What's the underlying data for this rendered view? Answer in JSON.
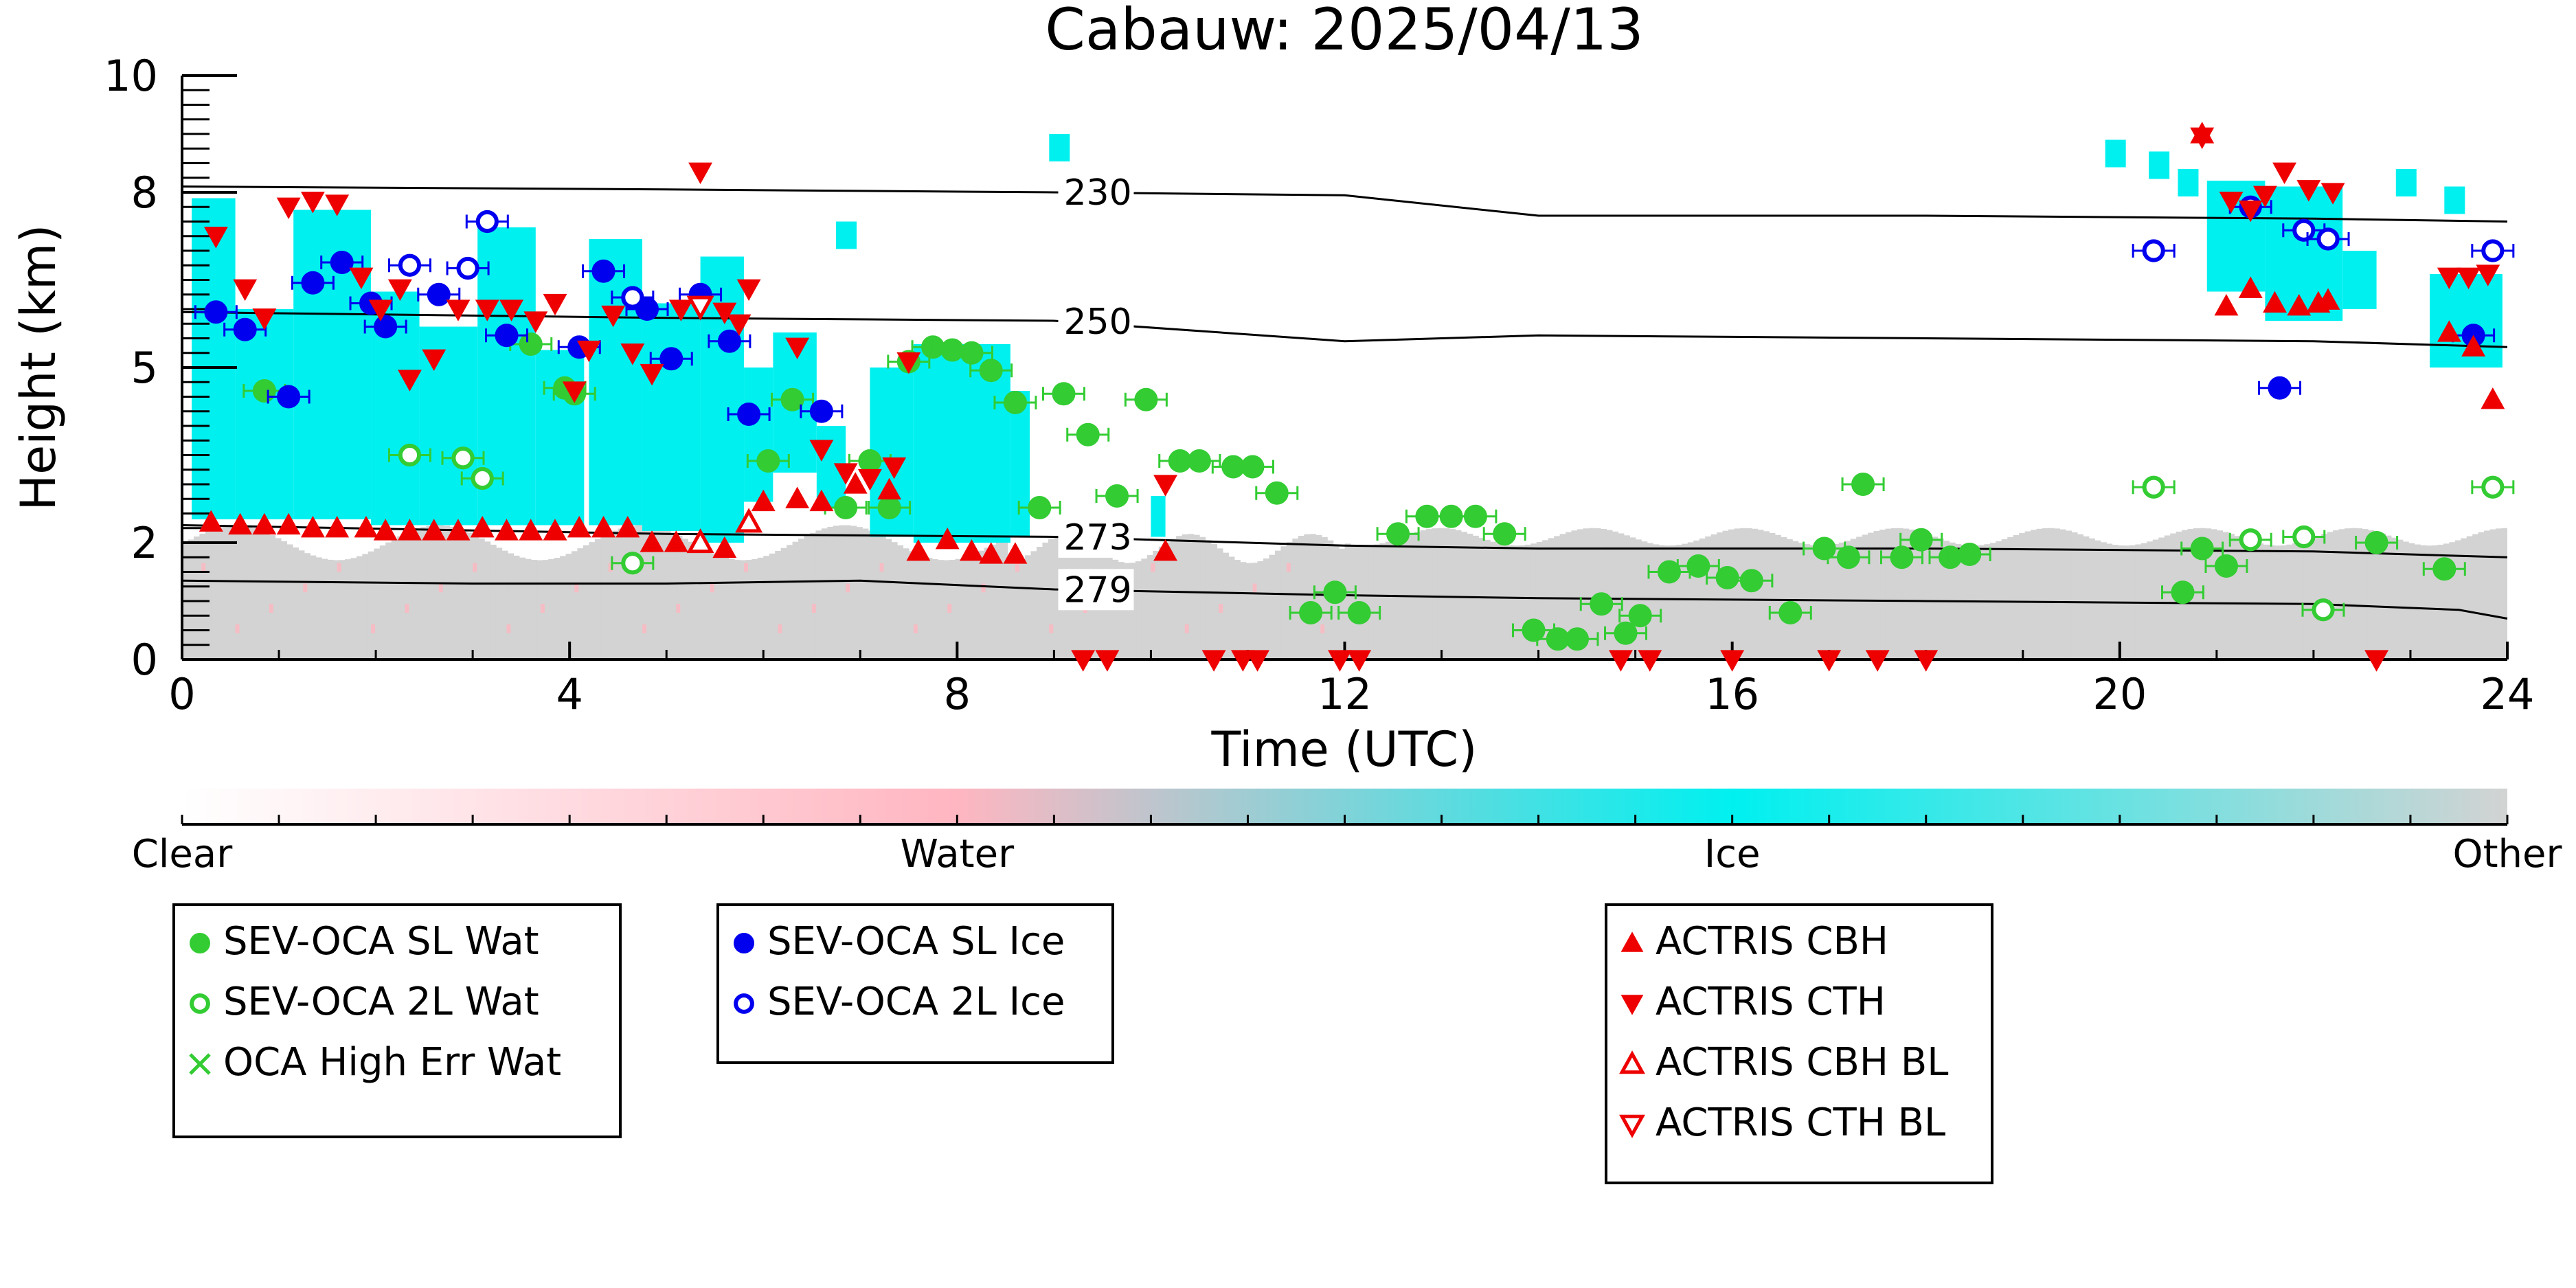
{
  "chart_data": {
    "type": "scatter",
    "title": "Cabauw: 2025/04/13",
    "xlabel": "Time (UTC)",
    "ylabel": "Height (km)",
    "xlim": [
      0,
      24
    ],
    "ylim": [
      0,
      10
    ],
    "x_ticks": [
      "0",
      "4",
      "8",
      "12",
      "16",
      "20",
      "24"
    ],
    "y_ticks": [
      "0",
      "2",
      "5",
      "8",
      "10"
    ],
    "grid": false,
    "colorbar": {
      "labels": [
        "Clear",
        "Water",
        "Ice",
        "Other"
      ],
      "colors": [
        "#ffffff",
        "#ffb6c1",
        "#00f0f0",
        "#d3d3d3"
      ]
    },
    "isotherms": [
      {
        "label": "230",
        "points": [
          [
            0,
            8.1
          ],
          [
            5,
            8.05
          ],
          [
            9,
            8.0
          ],
          [
            12,
            7.95
          ],
          [
            14,
            7.6
          ],
          [
            18,
            7.6
          ],
          [
            22,
            7.55
          ],
          [
            24,
            7.5
          ]
        ]
      },
      {
        "label": "250",
        "points": [
          [
            0,
            5.95
          ],
          [
            5,
            5.85
          ],
          [
            9,
            5.8
          ],
          [
            12,
            5.45
          ],
          [
            14,
            5.55
          ],
          [
            18,
            5.5
          ],
          [
            22,
            5.45
          ],
          [
            24,
            5.35
          ]
        ]
      },
      {
        "label": "273",
        "points": [
          [
            0,
            2.3
          ],
          [
            5,
            2.15
          ],
          [
            9,
            2.1
          ],
          [
            12,
            1.95
          ],
          [
            14,
            1.9
          ],
          [
            18,
            1.9
          ],
          [
            22,
            1.85
          ],
          [
            24,
            1.75
          ]
        ]
      },
      {
        "label": "279",
        "points": [
          [
            0,
            1.35
          ],
          [
            3,
            1.3
          ],
          [
            5,
            1.3
          ],
          [
            7,
            1.35
          ],
          [
            9,
            1.2
          ],
          [
            12,
            1.1
          ],
          [
            14,
            1.05
          ],
          [
            18,
            1.0
          ],
          [
            22,
            0.95
          ],
          [
            23.5,
            0.85
          ],
          [
            24,
            0.7
          ]
        ]
      }
    ],
    "series": [
      {
        "name": "SEV-OCA SL Wat",
        "marker": "filled-circle",
        "color": "#33cc33",
        "points": [
          [
            0.85,
            4.6
          ],
          [
            3.6,
            5.4
          ],
          [
            3.95,
            4.65
          ],
          [
            4.05,
            4.55
          ],
          [
            6.05,
            3.4
          ],
          [
            6.3,
            4.45
          ],
          [
            6.85,
            2.6
          ],
          [
            7.1,
            3.4
          ],
          [
            7.3,
            2.6
          ],
          [
            7.5,
            5.1
          ],
          [
            7.75,
            5.35
          ],
          [
            7.95,
            5.3
          ],
          [
            8.15,
            5.25
          ],
          [
            8.35,
            4.95
          ],
          [
            8.6,
            4.4
          ],
          [
            8.85,
            2.6
          ],
          [
            9.1,
            4.55
          ],
          [
            9.35,
            3.85
          ],
          [
            9.65,
            2.8
          ],
          [
            9.95,
            4.45
          ],
          [
            10.3,
            3.4
          ],
          [
            10.5,
            3.4
          ],
          [
            10.85,
            3.3
          ],
          [
            11.05,
            3.3
          ],
          [
            11.3,
            2.85
          ],
          [
            11.65,
            0.8
          ],
          [
            11.9,
            1.15
          ],
          [
            12.15,
            0.8
          ],
          [
            12.55,
            2.15
          ],
          [
            12.85,
            2.45
          ],
          [
            13.1,
            2.45
          ],
          [
            13.35,
            2.45
          ],
          [
            13.65,
            2.15
          ],
          [
            13.95,
            0.5
          ],
          [
            14.2,
            0.35
          ],
          [
            14.4,
            0.35
          ],
          [
            14.65,
            0.95
          ],
          [
            14.9,
            0.45
          ],
          [
            15.05,
            0.75
          ],
          [
            15.35,
            1.5
          ],
          [
            15.65,
            1.6
          ],
          [
            15.95,
            1.4
          ],
          [
            16.2,
            1.35
          ],
          [
            16.6,
            0.8
          ],
          [
            16.95,
            1.9
          ],
          [
            17.2,
            1.75
          ],
          [
            17.35,
            3.0
          ],
          [
            17.75,
            1.75
          ],
          [
            17.95,
            2.05
          ],
          [
            18.25,
            1.75
          ],
          [
            18.45,
            1.8
          ],
          [
            20.65,
            1.15
          ],
          [
            20.85,
            1.9
          ],
          [
            21.1,
            1.6
          ],
          [
            22.65,
            2.0
          ],
          [
            23.35,
            1.55
          ]
        ]
      },
      {
        "name": "SEV-OCA 2L Wat",
        "marker": "open-circle",
        "color": "#33cc33",
        "points": [
          [
            2.35,
            3.5
          ],
          [
            2.9,
            3.45
          ],
          [
            3.1,
            3.1
          ],
          [
            4.65,
            1.65
          ],
          [
            20.35,
            2.95
          ],
          [
            21.35,
            2.05
          ],
          [
            21.9,
            2.1
          ],
          [
            22.1,
            0.85
          ],
          [
            23.85,
            2.95
          ]
        ]
      },
      {
        "name": "OCA High Err Wat",
        "marker": "x",
        "color": "#33cc33",
        "points": []
      },
      {
        "name": "SEV-OCA SL Ice",
        "marker": "filled-circle",
        "color": "#0000ee",
        "points": [
          [
            0.35,
            5.95
          ],
          [
            0.65,
            5.65
          ],
          [
            1.1,
            4.5
          ],
          [
            1.35,
            6.45
          ],
          [
            1.65,
            6.8
          ],
          [
            1.95,
            6.1
          ],
          [
            2.1,
            5.7
          ],
          [
            2.65,
            6.25
          ],
          [
            3.35,
            5.55
          ],
          [
            4.1,
            5.35
          ],
          [
            4.35,
            6.65
          ],
          [
            4.8,
            6.0
          ],
          [
            5.05,
            5.15
          ],
          [
            5.35,
            6.25
          ],
          [
            5.65,
            5.45
          ],
          [
            5.85,
            4.2
          ],
          [
            6.6,
            4.25
          ],
          [
            21.65,
            4.65
          ],
          [
            23.65,
            5.55
          ]
        ]
      },
      {
        "name": "SEV-OCA 2L Ice",
        "marker": "open-circle",
        "color": "#0000ee",
        "points": [
          [
            2.35,
            6.75
          ],
          [
            2.95,
            6.7
          ],
          [
            3.15,
            7.5
          ],
          [
            4.65,
            6.2
          ],
          [
            20.35,
            7.0
          ],
          [
            21.35,
            7.75
          ],
          [
            21.9,
            7.35
          ],
          [
            22.15,
            7.2
          ],
          [
            23.85,
            7.0
          ]
        ]
      },
      {
        "name": "ACTRIS CBH",
        "marker": "filled-triangle-up",
        "color": "#ee0000",
        "points": [
          [
            0.3,
            2.35
          ],
          [
            0.6,
            2.3
          ],
          [
            0.85,
            2.3
          ],
          [
            1.1,
            2.3
          ],
          [
            1.35,
            2.25
          ],
          [
            1.6,
            2.25
          ],
          [
            1.9,
            2.25
          ],
          [
            2.1,
            2.2
          ],
          [
            2.35,
            2.2
          ],
          [
            2.6,
            2.2
          ],
          [
            2.85,
            2.2
          ],
          [
            3.1,
            2.25
          ],
          [
            3.35,
            2.2
          ],
          [
            3.6,
            2.2
          ],
          [
            3.85,
            2.2
          ],
          [
            4.1,
            2.25
          ],
          [
            4.35,
            2.25
          ],
          [
            4.6,
            2.25
          ],
          [
            4.85,
            2.0
          ],
          [
            5.1,
            2.0
          ],
          [
            5.35,
            2.0
          ],
          [
            5.6,
            1.9
          ],
          [
            6.0,
            2.7
          ],
          [
            6.35,
            2.75
          ],
          [
            6.6,
            2.7
          ],
          [
            6.95,
            3.0
          ],
          [
            7.3,
            2.9
          ],
          [
            7.6,
            1.85
          ],
          [
            7.9,
            2.05
          ],
          [
            8.15,
            1.85
          ],
          [
            8.35,
            1.8
          ],
          [
            8.6,
            1.8
          ],
          [
            10.15,
            1.85
          ],
          [
            20.85,
            9.0
          ],
          [
            21.1,
            6.05
          ],
          [
            21.35,
            6.35
          ],
          [
            21.6,
            6.1
          ],
          [
            21.85,
            6.05
          ],
          [
            22.05,
            6.1
          ],
          [
            22.15,
            6.15
          ],
          [
            23.4,
            5.6
          ],
          [
            23.65,
            5.35
          ],
          [
            23.85,
            4.45
          ]
        ]
      },
      {
        "name": "ACTRIS CTH",
        "marker": "filled-triangle-down",
        "color": "#ee0000",
        "points": [
          [
            0.35,
            7.25
          ],
          [
            0.65,
            6.35
          ],
          [
            0.85,
            5.85
          ],
          [
            1.1,
            7.75
          ],
          [
            1.35,
            7.85
          ],
          [
            1.6,
            7.8
          ],
          [
            1.85,
            6.55
          ],
          [
            2.05,
            6.0
          ],
          [
            2.25,
            6.35
          ],
          [
            2.35,
            4.8
          ],
          [
            2.6,
            5.15
          ],
          [
            2.85,
            6.0
          ],
          [
            3.15,
            6.0
          ],
          [
            3.4,
            6.0
          ],
          [
            3.65,
            5.8
          ],
          [
            3.85,
            6.1
          ],
          [
            4.05,
            4.6
          ],
          [
            4.2,
            5.3
          ],
          [
            4.45,
            5.9
          ],
          [
            4.65,
            5.25
          ],
          [
            4.85,
            4.9
          ],
          [
            5.15,
            6.0
          ],
          [
            5.35,
            8.35
          ],
          [
            5.6,
            5.95
          ],
          [
            5.75,
            5.75
          ],
          [
            5.85,
            6.35
          ],
          [
            6.35,
            5.35
          ],
          [
            6.6,
            3.6
          ],
          [
            6.85,
            3.2
          ],
          [
            7.1,
            3.1
          ],
          [
            7.35,
            3.3
          ],
          [
            7.5,
            5.1
          ],
          [
            9.3,
            0.0
          ],
          [
            9.55,
            0.0
          ],
          [
            10.15,
            3.0
          ],
          [
            10.65,
            0.0
          ],
          [
            10.95,
            0.0
          ],
          [
            11.1,
            0.0
          ],
          [
            11.95,
            0.0
          ],
          [
            12.15,
            0.0
          ],
          [
            14.85,
            0.0
          ],
          [
            15.15,
            0.0
          ],
          [
            16.0,
            0.0
          ],
          [
            17.0,
            0.0
          ],
          [
            17.5,
            0.0
          ],
          [
            18.0,
            0.0
          ],
          [
            20.85,
            8.95
          ],
          [
            21.15,
            7.85
          ],
          [
            21.35,
            7.7
          ],
          [
            21.5,
            7.95
          ],
          [
            21.7,
            8.35
          ],
          [
            21.95,
            8.05
          ],
          [
            22.2,
            8.0
          ],
          [
            22.65,
            0.0
          ],
          [
            23.4,
            6.55
          ],
          [
            23.6,
            6.55
          ],
          [
            23.8,
            6.6
          ]
        ]
      },
      {
        "name": "ACTRIS CBH BL",
        "marker": "open-triangle-up",
        "color": "#ee0000",
        "points": [
          [
            5.35,
            2.0
          ],
          [
            5.85,
            2.35
          ]
        ]
      },
      {
        "name": "ACTRIS CTH BL",
        "marker": "open-triangle-down",
        "color": "#ee0000",
        "points": [
          [
            5.35,
            6.05
          ]
        ]
      }
    ]
  }
}
